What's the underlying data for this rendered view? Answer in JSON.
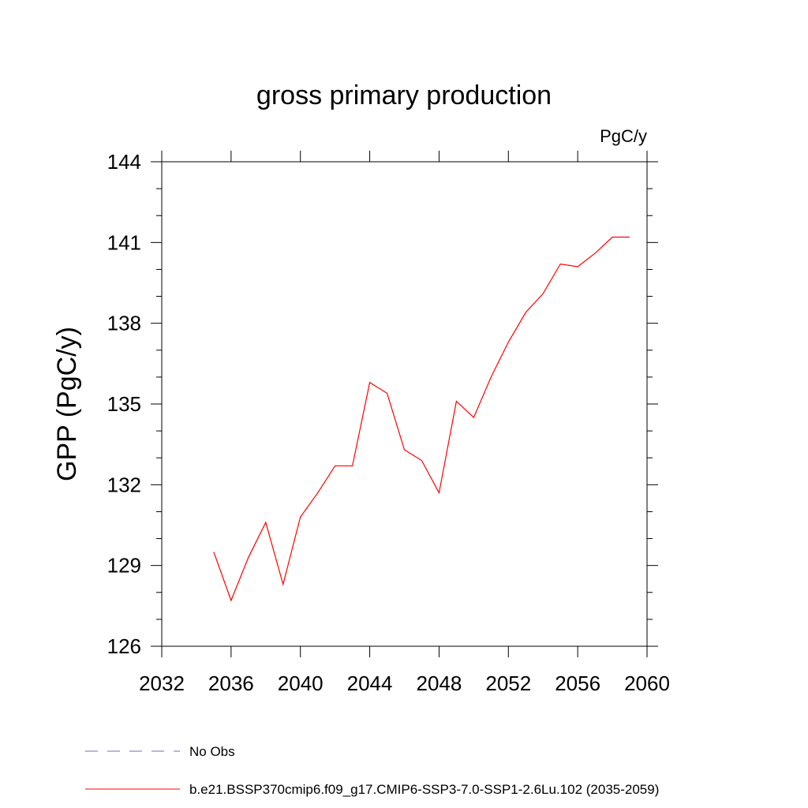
{
  "chart_data": {
    "type": "line",
    "title": "gross primary production",
    "units_label": "PgC/y",
    "ylabel": "GPP  (PgC/y)",
    "xlabel": "",
    "xlim": [
      2032,
      2060
    ],
    "ylim": [
      126,
      144
    ],
    "xticks": [
      2032,
      2036,
      2040,
      2044,
      2048,
      2052,
      2056,
      2060
    ],
    "yticks": [
      126,
      129,
      132,
      135,
      138,
      141,
      144
    ],
    "grid": false,
    "legend_position": "bottom",
    "series": [
      {
        "name": "No Obs",
        "color": "#7b68b0",
        "dash": "dashed",
        "x": [],
        "y": []
      },
      {
        "name": "b.e21.BSSP370cmip6.f09_g17.CMIP6-SSP3-7.0-SSP1-2.6Lu.102 (2035-2059)",
        "color": "#ff0000",
        "dash": "solid",
        "x": [
          2035,
          2036,
          2037,
          2038,
          2039,
          2040,
          2041,
          2042,
          2043,
          2044,
          2045,
          2046,
          2047,
          2048,
          2049,
          2050,
          2051,
          2052,
          2053,
          2054,
          2055,
          2056,
          2057,
          2058,
          2059
        ],
        "y": [
          129.5,
          127.7,
          129.3,
          130.6,
          128.3,
          130.8,
          131.7,
          132.7,
          132.7,
          135.8,
          135.4,
          133.3,
          132.9,
          131.7,
          135.1,
          134.5,
          136.0,
          137.3,
          138.4,
          139.1,
          140.2,
          140.1,
          140.6,
          141.2,
          141.2
        ]
      }
    ]
  }
}
